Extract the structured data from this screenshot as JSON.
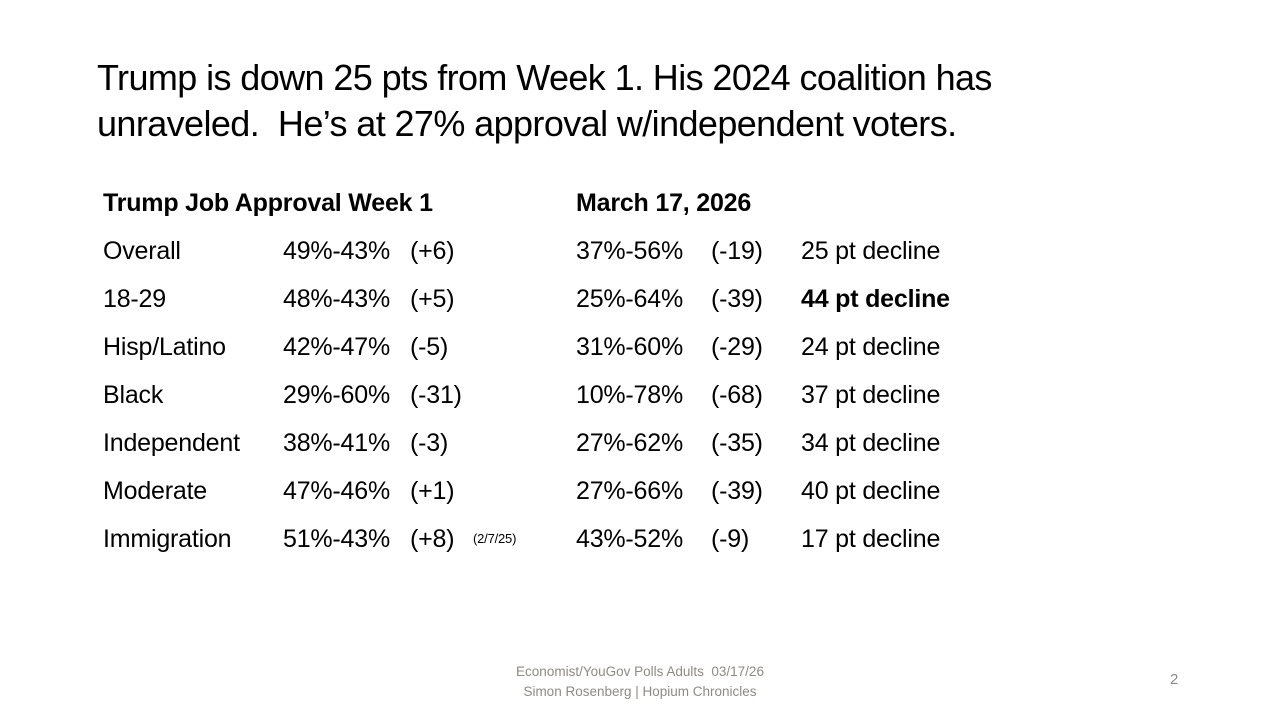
{
  "slide": {
    "title_line1": "Trump is down 25 pts from Week 1. His 2024 coalition has",
    "title_line2": "unraveled.  He’s at 27% approval w/independent voters.",
    "page_number": "2",
    "footer_line1": "Economist/YouGov Polls Adults  03/17/26",
    "footer_line2": "Simon Rosenberg | Hopium Chronicles"
  },
  "table": {
    "header": {
      "col_week1": "Trump Job Approval Week 1",
      "col_march": "March 17, 2026"
    },
    "rows": [
      {
        "category": "Overall",
        "week1": "49%-43%",
        "week1_change": "(+6)",
        "note": "",
        "march": "37%-56%",
        "march_change": "(-19)",
        "decline": "25 pt decline",
        "decline_bold": false
      },
      {
        "category": "18-29",
        "week1": "48%-43%",
        "week1_change": "(+5)",
        "note": "",
        "march": "25%-64%",
        "march_change": "(-39)",
        "decline": "44 pt decline",
        "decline_bold": true
      },
      {
        "category": "Hisp/Latino",
        "week1": "42%-47%",
        "week1_change": "(-5)",
        "note": "",
        "march": "31%-60%",
        "march_change": "(-29)",
        "decline": "24 pt decline",
        "decline_bold": false
      },
      {
        "category": "Black",
        "week1": "29%-60%",
        "week1_change": "(-31)",
        "note": "",
        "march": "10%-78%",
        "march_change": "(-68)",
        "decline": "37 pt decline",
        "decline_bold": false
      },
      {
        "category": "Independent",
        "week1": "38%-41%",
        "week1_change": "(-3)",
        "note": "",
        "march": "27%-62%",
        "march_change": "(-35)",
        "decline": "34 pt decline",
        "decline_bold": false
      },
      {
        "category": "Moderate",
        "week1": "47%-46%",
        "week1_change": "(+1)",
        "note": "",
        "march": "27%-66%",
        "march_change": "(-39)",
        "decline": "40 pt decline",
        "decline_bold": false
      },
      {
        "category": "Immigration",
        "week1": "51%-43%",
        "week1_change": "(+8)",
        "note": "(2/7/25)",
        "march": "43%-52%",
        "march_change": "(-9)",
        "decline": "17 pt decline",
        "decline_bold": false
      }
    ]
  },
  "colors": {
    "background": "#ffffff",
    "body_text": "#000000",
    "footer_text": "#8e8a84",
    "page_number_text": "#8a8a8a"
  }
}
